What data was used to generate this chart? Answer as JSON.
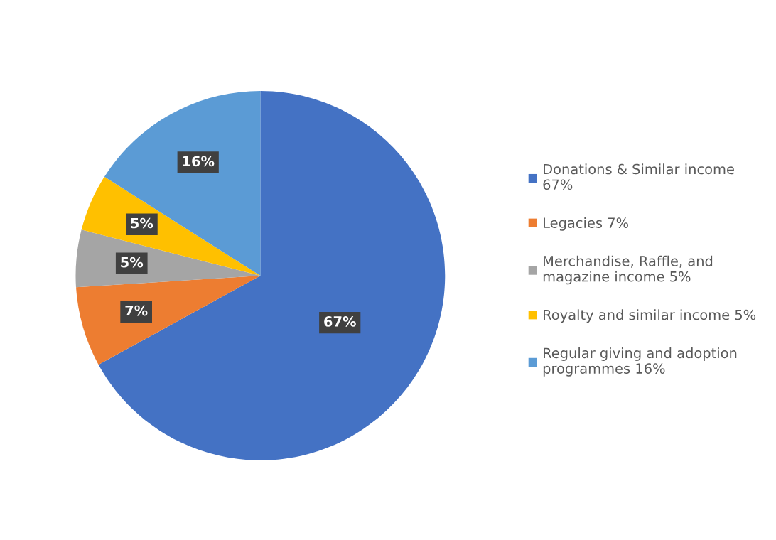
{
  "chart_data": {
    "type": "pie",
    "categories": [
      "Donations & Similar income\n67%",
      "Legacies 7%",
      "Merchandise, Raffle, and\nmagazine income 5%",
      "Royalty and similar income 5%",
      "Regular giving and adoption\nprogrammes 16%"
    ],
    "values": [
      67,
      7,
      5,
      5,
      16
    ],
    "colors": [
      "#4472c4",
      "#ed7d31",
      "#a5a5a5",
      "#ffc000",
      "#5b9bd5"
    ],
    "value_labels": [
      "67%",
      "7%",
      "5%",
      "5%",
      "16%"
    ],
    "legend": "right"
  }
}
